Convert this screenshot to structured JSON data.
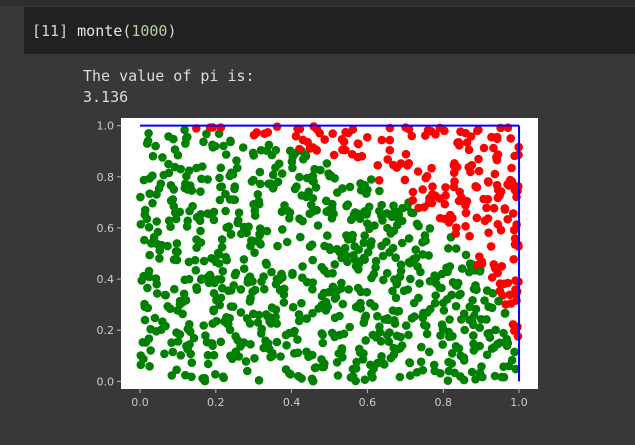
{
  "cell": {
    "prompt": "[11]",
    "function": "monte",
    "argument": "1000"
  },
  "output": {
    "line1": "The value of pi is:",
    "line2": "3.136"
  },
  "chart_data": {
    "type": "scatter",
    "title": "",
    "xlabel": "",
    "ylabel": "",
    "xlim": [
      -0.05,
      1.05
    ],
    "ylim": [
      -0.03,
      1.03
    ],
    "x_ticks": [
      "0.0",
      "0.2",
      "0.4",
      "0.6",
      "0.8",
      "1.0"
    ],
    "y_ticks": [
      "0.0",
      "0.2",
      "0.4",
      "0.6",
      "0.8",
      "1.0"
    ],
    "grid": false,
    "legend": "none",
    "n_points": 1000,
    "pi_estimate": 3.136,
    "series": [
      {
        "color": "#008000",
        "region": "inside unit circle"
      },
      {
        "color": "#ff0000",
        "region": "outside unit circle"
      }
    ],
    "boundary_color": "#0000ff"
  }
}
